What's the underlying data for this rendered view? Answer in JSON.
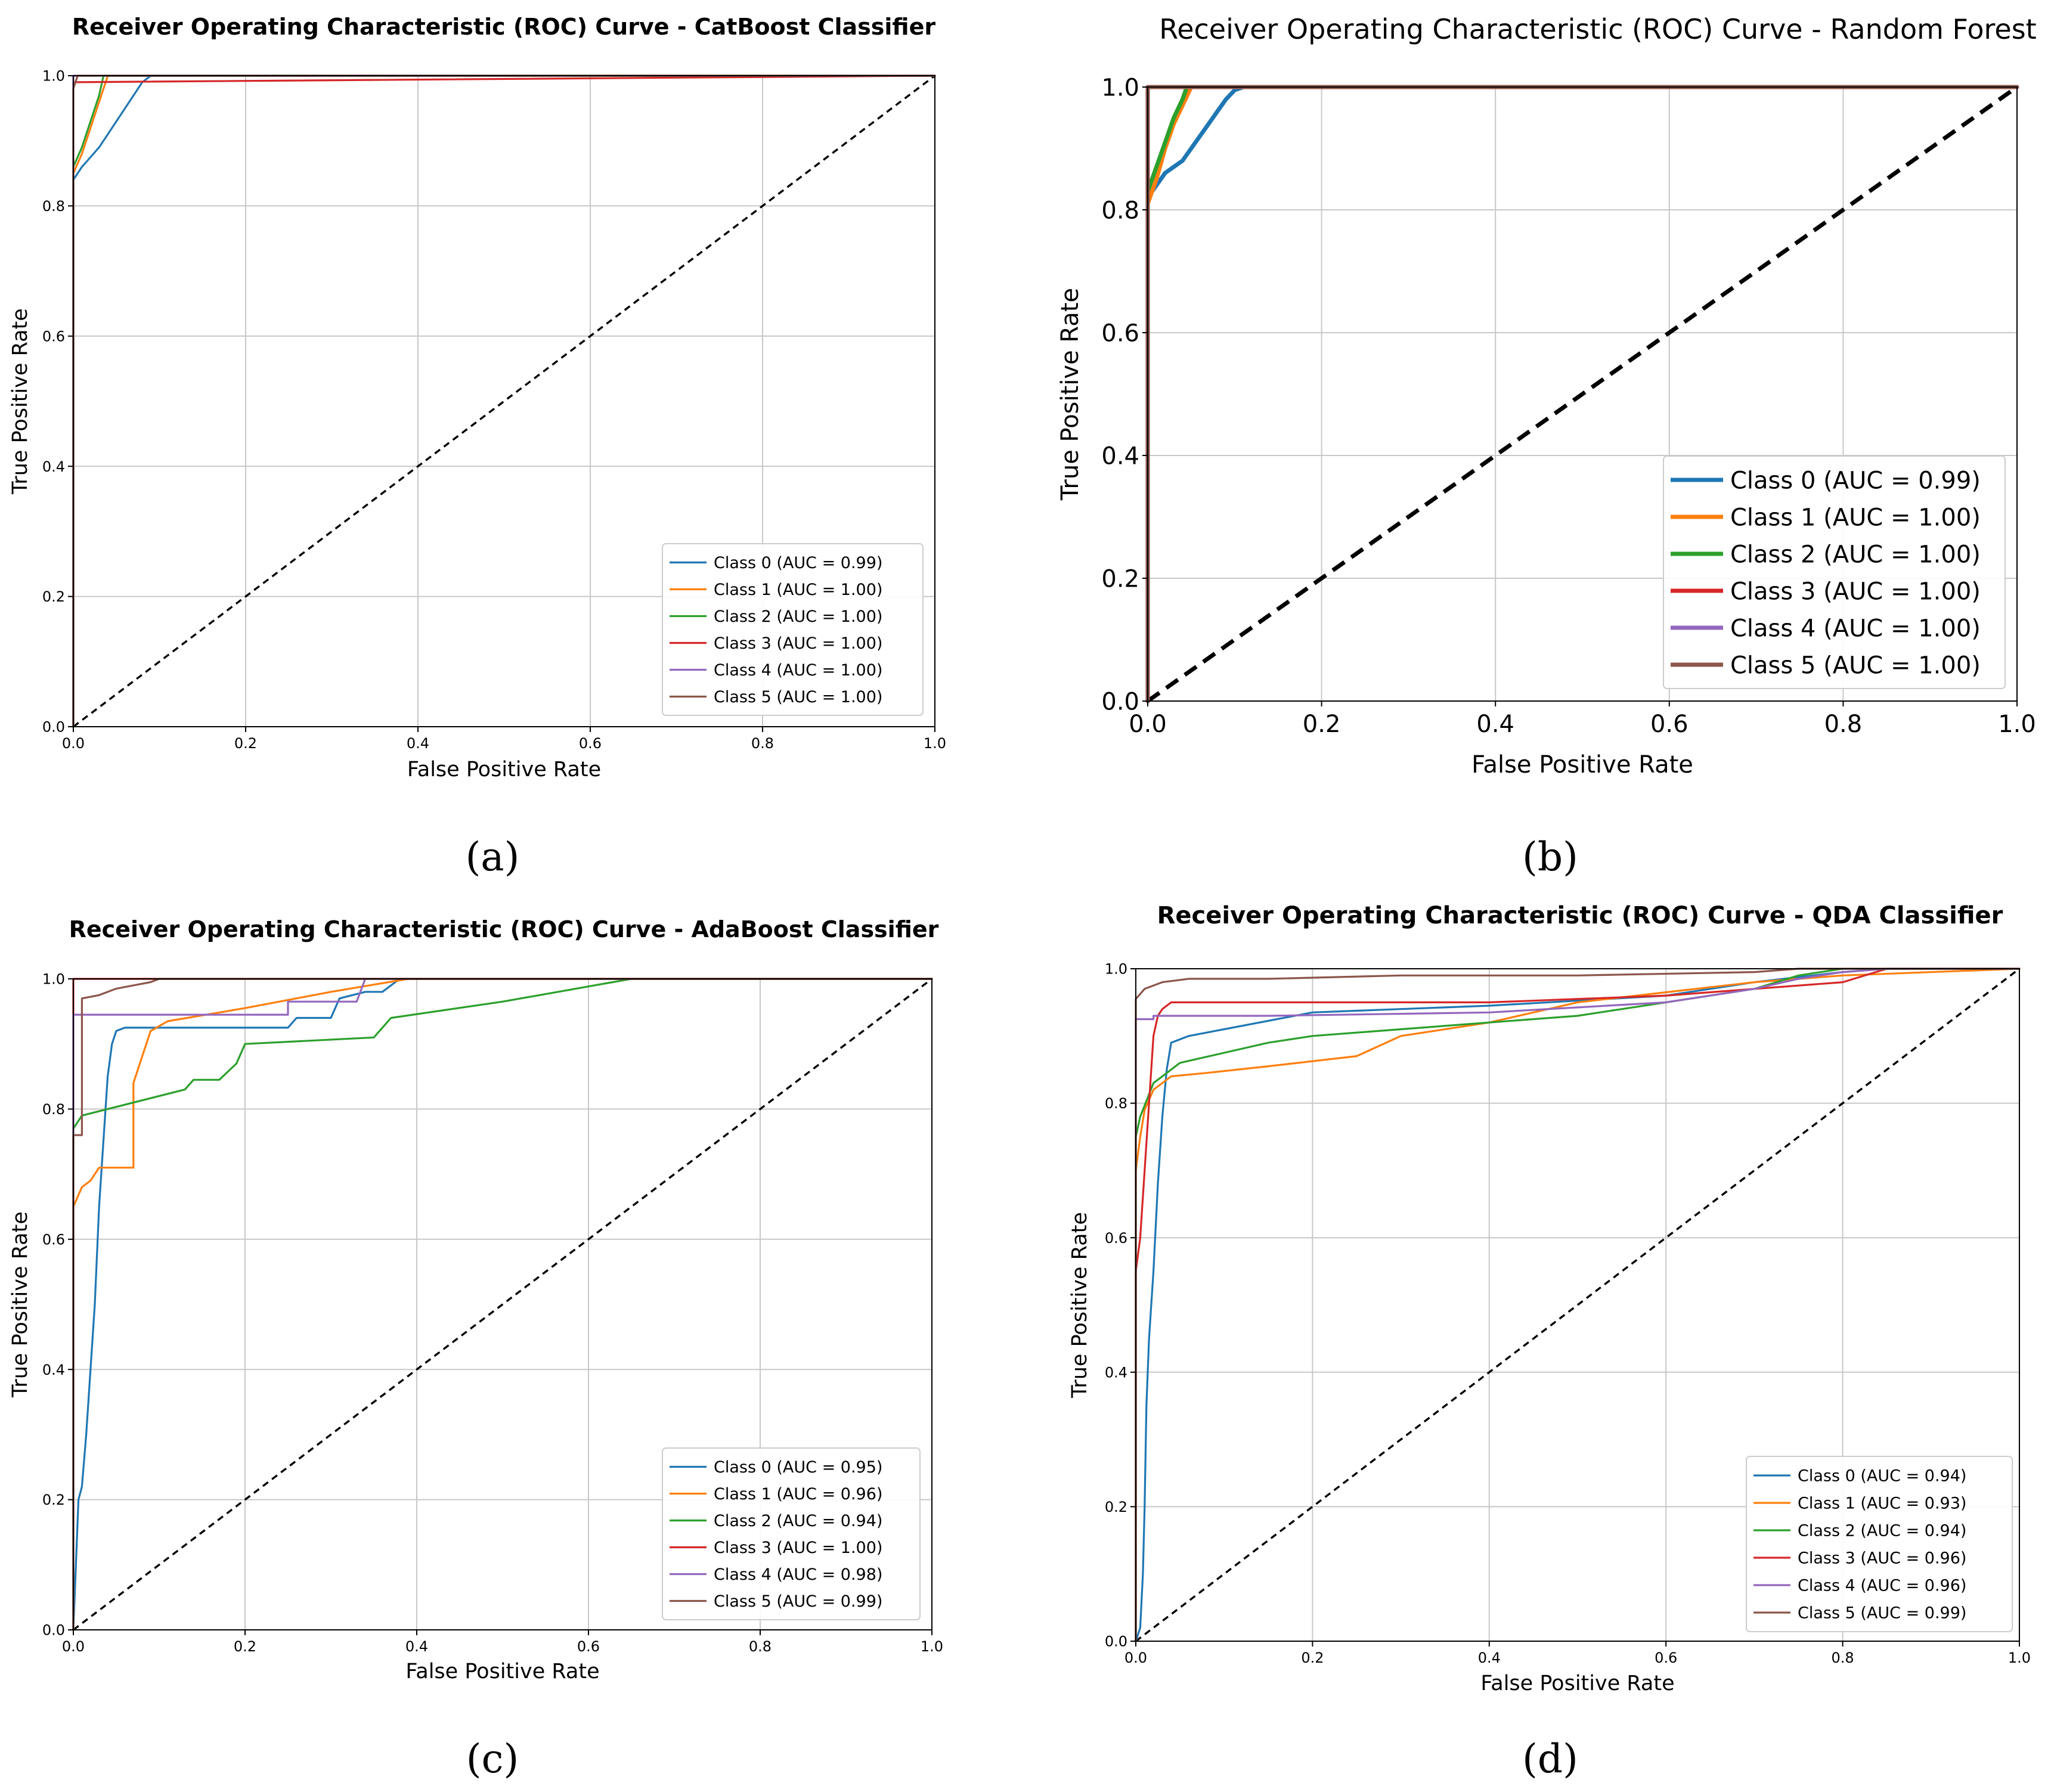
{
  "colors": {
    "class0": "#1f77b4",
    "class1": "#ff7f0e",
    "class2": "#2ca02c",
    "class3": "#d62728",
    "class4": "#9467bd",
    "class5": "#8c564b",
    "diagonal": "#000000",
    "grid": "#c8c8c8"
  },
  "chart_data": [
    {
      "type": "line",
      "panel_label": "(a)",
      "title": "Receiver Operating Characteristic (ROC) Curve - CatBoost Classifier",
      "xlabel": "False Positive Rate",
      "ylabel": "True Positive Rate",
      "xlim": [
        0,
        1
      ],
      "ylim": [
        0,
        1
      ],
      "xticks": [
        "0.0",
        "0.2",
        "0.4",
        "0.6",
        "0.8",
        "1.0"
      ],
      "yticks": [
        "0.0",
        "0.2",
        "0.4",
        "0.6",
        "0.8",
        "1.0"
      ],
      "grid": true,
      "legend_position": "bottom-right",
      "diagonal": true,
      "series": [
        {
          "name": "Class 0 (AUC = 0.99)",
          "x": [
            0,
            0,
            0.01,
            0.02,
            0.03,
            0.04,
            0.05,
            0.06,
            0.07,
            0.08,
            0.09,
            1
          ],
          "y": [
            0,
            0.84,
            0.86,
            0.875,
            0.89,
            0.91,
            0.93,
            0.95,
            0.97,
            0.99,
            1,
            1
          ]
        },
        {
          "name": "Class 1 (AUC = 1.00)",
          "x": [
            0,
            0,
            0.01,
            0.02,
            0.03,
            0.04,
            1
          ],
          "y": [
            0,
            0.85,
            0.88,
            0.92,
            0.96,
            1,
            1
          ]
        },
        {
          "name": "Class 2 (AUC = 1.00)",
          "x": [
            0,
            0,
            0.01,
            0.02,
            0.03,
            0.035,
            1
          ],
          "y": [
            0,
            0.86,
            0.89,
            0.93,
            0.97,
            1,
            1
          ]
        },
        {
          "name": "Class 3 (AUC = 1.00)",
          "x": [
            0,
            0,
            1
          ],
          "y": [
            0,
            0.99,
            1
          ]
        },
        {
          "name": "Class 4 (AUC = 1.00)",
          "x": [
            0,
            0,
            1
          ],
          "y": [
            0,
            1,
            1
          ]
        },
        {
          "name": "Class 5 (AUC = 1.00)",
          "x": [
            0,
            0,
            0.005,
            1
          ],
          "y": [
            0,
            0.98,
            1,
            1
          ]
        }
      ]
    },
    {
      "type": "line",
      "panel_label": "(b)",
      "title": "Receiver Operating Characteristic (ROC) Curve - Random Forest",
      "xlabel": "False Positive Rate",
      "ylabel": "True Positive Rate",
      "xlim": [
        0,
        1
      ],
      "ylim": [
        0,
        1
      ],
      "xticks": [
        "0.0",
        "0.2",
        "0.4",
        "0.6",
        "0.8",
        "1.0"
      ],
      "yticks": [
        "0.0",
        "0.2",
        "0.4",
        "0.6",
        "0.8",
        "1.0"
      ],
      "grid": true,
      "legend_position": "center-right",
      "diagonal": true,
      "series": [
        {
          "name": "Class 0 (AUC = 0.99)",
          "x": [
            0,
            0,
            0.01,
            0.02,
            0.03,
            0.04,
            0.05,
            0.06,
            0.07,
            0.08,
            0.09,
            0.1,
            0.11,
            1
          ],
          "y": [
            0,
            0.82,
            0.84,
            0.86,
            0.87,
            0.88,
            0.9,
            0.92,
            0.94,
            0.96,
            0.98,
            0.995,
            1,
            1
          ]
        },
        {
          "name": "Class 1 (AUC = 1.00)",
          "x": [
            0,
            0,
            0.01,
            0.02,
            0.03,
            0.04,
            0.05,
            1
          ],
          "y": [
            0,
            0.81,
            0.85,
            0.9,
            0.94,
            0.97,
            1,
            1
          ]
        },
        {
          "name": "Class 2 (AUC = 1.00)",
          "x": [
            0,
            0,
            0.01,
            0.02,
            0.03,
            0.04,
            0.045,
            1
          ],
          "y": [
            0,
            0.83,
            0.87,
            0.91,
            0.95,
            0.98,
            1,
            1
          ]
        },
        {
          "name": "Class 3 (AUC = 1.00)",
          "x": [
            0,
            0,
            1
          ],
          "y": [
            0,
            1,
            1
          ]
        },
        {
          "name": "Class 4 (AUC = 1.00)",
          "x": [
            0,
            0,
            1
          ],
          "y": [
            0,
            1,
            1
          ]
        },
        {
          "name": "Class 5 (AUC = 1.00)",
          "x": [
            0,
            0,
            1
          ],
          "y": [
            0,
            1,
            1
          ]
        }
      ]
    },
    {
      "type": "line",
      "panel_label": "(c)",
      "title": "Receiver Operating Characteristic (ROC) Curve - AdaBoost Classifier",
      "xlabel": "False Positive Rate",
      "ylabel": "True Positive Rate",
      "xlim": [
        0,
        1
      ],
      "ylim": [
        0,
        1
      ],
      "xticks": [
        "0.0",
        "0.2",
        "0.4",
        "0.6",
        "0.8",
        "1.0"
      ],
      "yticks": [
        "0.0",
        "0.2",
        "0.4",
        "0.6",
        "0.8",
        "1.0"
      ],
      "grid": true,
      "legend_position": "bottom-right",
      "diagonal": true,
      "series": [
        {
          "name": "Class 0 (AUC = 0.95)",
          "x": [
            0,
            0.003,
            0.006,
            0.01,
            0.015,
            0.02,
            0.025,
            0.03,
            0.035,
            0.04,
            0.045,
            0.05,
            0.06,
            0.25,
            0.26,
            0.3,
            0.31,
            0.34,
            0.36,
            0.38,
            1
          ],
          "y": [
            0,
            0.1,
            0.2,
            0.22,
            0.3,
            0.4,
            0.5,
            0.65,
            0.75,
            0.85,
            0.9,
            0.92,
            0.925,
            0.925,
            0.94,
            0.94,
            0.97,
            0.98,
            0.98,
            1,
            1
          ]
        },
        {
          "name": "Class 1 (AUC = 0.96)",
          "x": [
            0,
            0,
            0.01,
            0.02,
            0.03,
            0.07,
            0.07,
            0.08,
            0.09,
            0.11,
            0.2,
            0.3,
            0.39,
            1
          ],
          "y": [
            0,
            0.65,
            0.68,
            0.69,
            0.71,
            0.71,
            0.84,
            0.88,
            0.92,
            0.935,
            0.955,
            0.98,
            1,
            1
          ]
        },
        {
          "name": "Class 2 (AUC = 0.94)",
          "x": [
            0,
            0,
            0.01,
            0.13,
            0.14,
            0.17,
            0.19,
            0.2,
            0.35,
            0.37,
            0.5,
            0.65,
            1
          ],
          "y": [
            0,
            0.77,
            0.79,
            0.83,
            0.845,
            0.845,
            0.87,
            0.9,
            0.91,
            0.94,
            0.965,
            1,
            1
          ]
        },
        {
          "name": "Class 3 (AUC = 1.00)",
          "x": [
            0,
            0,
            1
          ],
          "y": [
            0,
            1,
            1
          ]
        },
        {
          "name": "Class 4 (AUC = 0.98)",
          "x": [
            0,
            0,
            0.25,
            0.25,
            0.33,
            0.34,
            1
          ],
          "y": [
            0,
            0.945,
            0.945,
            0.965,
            0.965,
            1,
            1
          ]
        },
        {
          "name": "Class 5 (AUC = 0.99)",
          "x": [
            0,
            0,
            0.01,
            0.01,
            0.03,
            0.05,
            0.07,
            0.09,
            0.1,
            1
          ],
          "y": [
            0,
            0.76,
            0.76,
            0.97,
            0.975,
            0.985,
            0.99,
            0.995,
            1,
            1
          ]
        }
      ]
    },
    {
      "type": "line",
      "panel_label": "(d)",
      "title": "Receiver Operating Characteristic (ROC) Curve - QDA Classifier",
      "xlabel": "False Positive Rate",
      "ylabel": "True Positive Rate",
      "xlim": [
        0,
        1
      ],
      "ylim": [
        0,
        1
      ],
      "xticks": [
        "0.0",
        "0.2",
        "0.4",
        "0.6",
        "0.8",
        "1.0"
      ],
      "yticks": [
        "0.0",
        "0.2",
        "0.4",
        "0.6",
        "0.8",
        "1.0"
      ],
      "grid": true,
      "legend_position": "bottom-right",
      "diagonal": true,
      "series": [
        {
          "name": "Class 0 (AUC = 0.94)",
          "x": [
            0,
            0.005,
            0.008,
            0.01,
            0.012,
            0.015,
            0.02,
            0.025,
            0.03,
            0.035,
            0.04,
            0.06,
            0.1,
            0.2,
            0.4,
            0.6,
            0.7,
            0.8,
            0.85,
            1
          ],
          "y": [
            0,
            0.02,
            0.1,
            0.2,
            0.35,
            0.45,
            0.55,
            0.68,
            0.78,
            0.85,
            0.89,
            0.9,
            0.91,
            0.935,
            0.945,
            0.96,
            0.98,
            0.995,
            1,
            1
          ]
        },
        {
          "name": "Class 1 (AUC = 0.93)",
          "x": [
            0,
            0,
            0.005,
            0.01,
            0.02,
            0.04,
            0.08,
            0.15,
            0.25,
            0.3,
            0.4,
            0.45,
            0.5,
            0.6,
            0.7,
            0.8,
            1
          ],
          "y": [
            0,
            0.7,
            0.75,
            0.79,
            0.82,
            0.84,
            0.845,
            0.855,
            0.87,
            0.9,
            0.92,
            0.935,
            0.95,
            0.965,
            0.98,
            0.99,
            1
          ]
        },
        {
          "name": "Class 2 (AUC = 0.94)",
          "x": [
            0,
            0,
            0.005,
            0.02,
            0.05,
            0.1,
            0.15,
            0.2,
            0.3,
            0.4,
            0.5,
            0.6,
            0.7,
            0.75,
            0.8,
            1
          ],
          "y": [
            0,
            0.75,
            0.78,
            0.83,
            0.86,
            0.875,
            0.89,
            0.9,
            0.91,
            0.92,
            0.93,
            0.95,
            0.97,
            0.99,
            1,
            1
          ]
        },
        {
          "name": "Class 3 (AUC = 0.96)",
          "x": [
            0,
            0,
            0.005,
            0.01,
            0.015,
            0.02,
            0.025,
            0.03,
            0.035,
            0.04,
            0.1,
            0.4,
            0.6,
            0.7,
            0.8,
            0.85,
            1
          ],
          "y": [
            0,
            0.55,
            0.6,
            0.7,
            0.8,
            0.9,
            0.93,
            0.94,
            0.945,
            0.95,
            0.95,
            0.95,
            0.96,
            0.97,
            0.98,
            1,
            1
          ]
        },
        {
          "name": "Class 4 (AUC = 0.96)",
          "x": [
            0,
            0,
            0.02,
            0.02,
            0.15,
            0.4,
            0.6,
            0.7,
            0.75,
            0.8,
            0.85,
            1
          ],
          "y": [
            0,
            0.925,
            0.925,
            0.93,
            0.93,
            0.935,
            0.95,
            0.97,
            0.985,
            0.995,
            1,
            1
          ]
        },
        {
          "name": "Class 5 (AUC = 0.99)",
          "x": [
            0,
            0,
            0.01,
            0.03,
            0.06,
            0.15,
            0.3,
            0.5,
            0.7,
            0.75,
            1
          ],
          "y": [
            0,
            0.955,
            0.97,
            0.98,
            0.985,
            0.985,
            0.99,
            0.99,
            0.995,
            1,
            1
          ]
        }
      ]
    }
  ]
}
